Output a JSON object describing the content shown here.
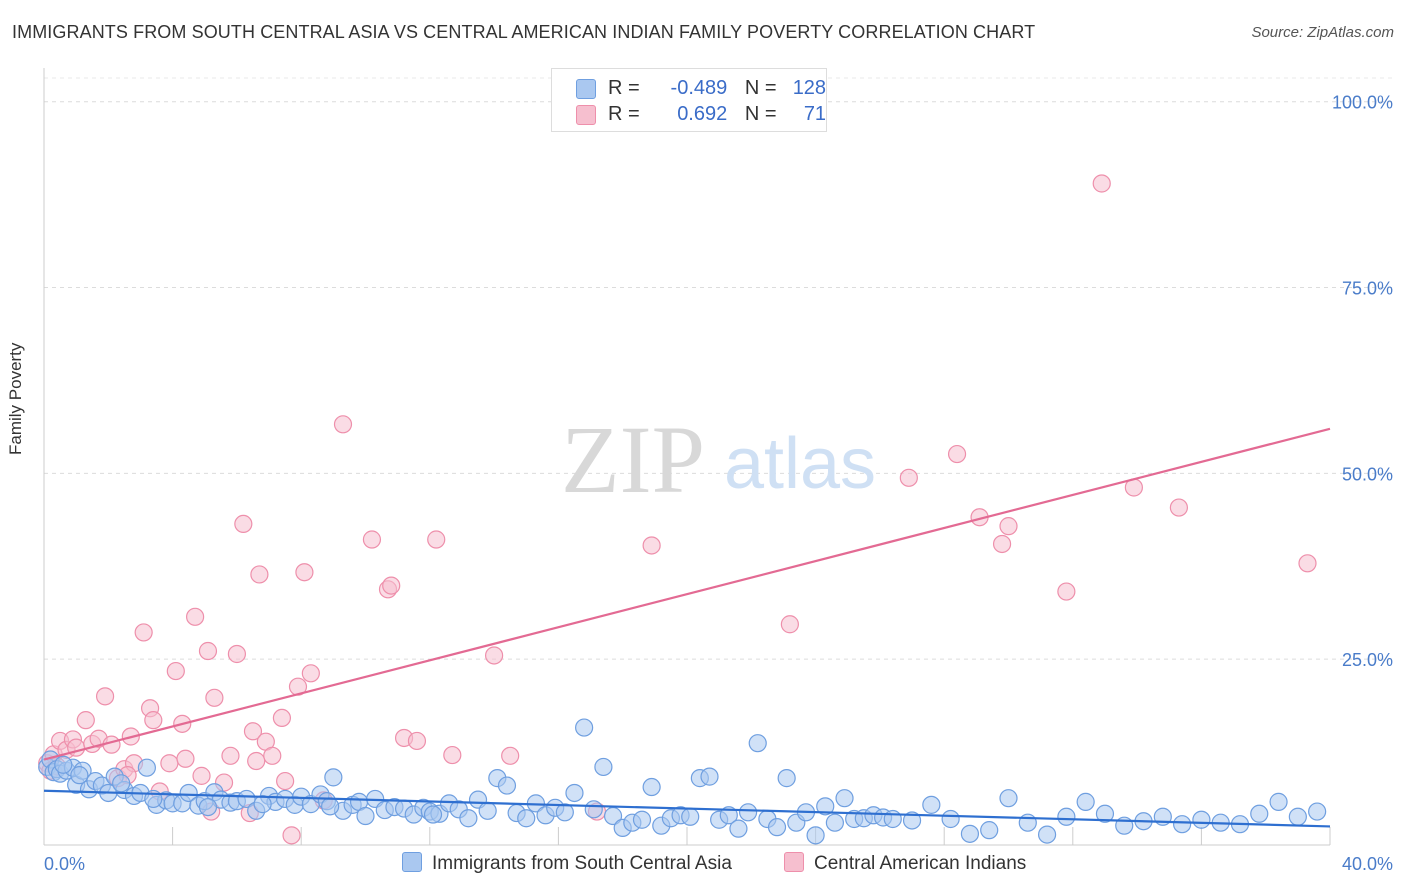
{
  "title": "IMMIGRANTS FROM SOUTH CENTRAL ASIA VS CENTRAL AMERICAN INDIAN FAMILY POVERTY CORRELATION CHART",
  "source": "Source: ZipAtlas.com",
  "watermark": {
    "zip": "ZIP",
    "atlas": "atlas"
  },
  "legend": {
    "rows": [
      {
        "r_label": "R =",
        "r_value": "-0.489",
        "n_label": "N =",
        "n_value": "128"
      },
      {
        "r_label": "R =",
        "r_value": "0.692",
        "n_label": "N =",
        "n_value": "71"
      }
    ]
  },
  "colors": {
    "blue_fill": "#aac8f0",
    "blue_stroke": "#6f9fe0",
    "blue_line": "#2e6fd0",
    "pink_fill": "#f6bfcf",
    "pink_stroke": "#ee8fab",
    "pink_line": "#e36a93",
    "axis_label": "#4a7cc9"
  },
  "chart_data": {
    "type": "scatter",
    "title": "IMMIGRANTS FROM SOUTH CENTRAL ASIA VS CENTRAL AMERICAN INDIAN FAMILY POVERTY CORRELATION CHART",
    "xlabel": "",
    "ylabel": "Family Poverty",
    "xlim": [
      0,
      40
    ],
    "ylim": [
      0,
      104
    ],
    "x_tick_labels": [
      "0.0%",
      "40.0%"
    ],
    "y_tick_labels": [
      "25.0%",
      "50.0%",
      "75.0%",
      "100.0%"
    ],
    "y_ticks": [
      25,
      50,
      75,
      100
    ],
    "grid": true,
    "series": [
      {
        "name": "Immigrants from South Central Asia",
        "color": "blue",
        "r": -0.489,
        "n": 128,
        "trend": {
          "x": [
            0,
            40
          ],
          "y": [
            7.3,
            2.5
          ]
        },
        "points": [
          [
            0.1,
            10.5
          ],
          [
            0.2,
            11.5
          ],
          [
            0.3,
            9.8
          ],
          [
            0.4,
            10.2
          ],
          [
            0.5,
            9.6
          ],
          [
            0.7,
            10.0
          ],
          [
            0.9,
            10.4
          ],
          [
            1.0,
            8.1
          ],
          [
            1.2,
            10.0
          ],
          [
            1.4,
            7.5
          ],
          [
            1.6,
            8.6
          ],
          [
            1.8,
            8.0
          ],
          [
            2.0,
            7.0
          ],
          [
            2.2,
            9.2
          ],
          [
            2.5,
            7.4
          ],
          [
            2.8,
            6.6
          ],
          [
            3.0,
            7.0
          ],
          [
            3.2,
            10.4
          ],
          [
            3.5,
            5.4
          ],
          [
            3.8,
            6.0
          ],
          [
            4.0,
            5.6
          ],
          [
            4.3,
            5.6
          ],
          [
            4.5,
            7.0
          ],
          [
            4.8,
            5.3
          ],
          [
            5.0,
            5.9
          ],
          [
            5.3,
            7.1
          ],
          [
            5.5,
            6.1
          ],
          [
            5.8,
            5.7
          ],
          [
            6.0,
            5.9
          ],
          [
            6.3,
            6.2
          ],
          [
            6.6,
            4.6
          ],
          [
            7.0,
            6.6
          ],
          [
            7.2,
            5.8
          ],
          [
            7.5,
            6.2
          ],
          [
            7.8,
            5.4
          ],
          [
            8.0,
            6.5
          ],
          [
            8.3,
            5.5
          ],
          [
            8.6,
            6.8
          ],
          [
            8.8,
            5.9
          ],
          [
            9.0,
            9.1
          ],
          [
            9.3,
            4.6
          ],
          [
            9.6,
            5.4
          ],
          [
            9.8,
            5.8
          ],
          [
            10.0,
            3.9
          ],
          [
            10.3,
            6.2
          ],
          [
            10.6,
            4.7
          ],
          [
            10.9,
            5.1
          ],
          [
            11.2,
            4.9
          ],
          [
            11.5,
            4.1
          ],
          [
            11.8,
            5.0
          ],
          [
            12.0,
            4.5
          ],
          [
            12.3,
            4.2
          ],
          [
            12.6,
            5.6
          ],
          [
            12.9,
            4.8
          ],
          [
            13.2,
            3.6
          ],
          [
            13.5,
            6.1
          ],
          [
            13.8,
            4.6
          ],
          [
            14.1,
            9.0
          ],
          [
            14.4,
            8.0
          ],
          [
            14.7,
            4.3
          ],
          [
            15.0,
            3.6
          ],
          [
            15.3,
            5.6
          ],
          [
            15.6,
            4.0
          ],
          [
            15.9,
            5.0
          ],
          [
            16.2,
            4.4
          ],
          [
            16.5,
            7.0
          ],
          [
            16.8,
            15.8
          ],
          [
            17.1,
            4.8
          ],
          [
            17.4,
            10.5
          ],
          [
            17.7,
            3.9
          ],
          [
            18.0,
            2.3
          ],
          [
            18.3,
            3.0
          ],
          [
            18.6,
            3.4
          ],
          [
            18.9,
            7.8
          ],
          [
            19.2,
            2.6
          ],
          [
            19.5,
            3.6
          ],
          [
            19.8,
            4.0
          ],
          [
            20.1,
            3.8
          ],
          [
            20.4,
            9.0
          ],
          [
            20.7,
            9.2
          ],
          [
            21.0,
            3.4
          ],
          [
            21.3,
            4.0
          ],
          [
            21.6,
            2.2
          ],
          [
            21.9,
            4.4
          ],
          [
            22.2,
            13.7
          ],
          [
            22.5,
            3.5
          ],
          [
            22.8,
            2.4
          ],
          [
            23.1,
            9.0
          ],
          [
            23.4,
            3.0
          ],
          [
            23.7,
            4.4
          ],
          [
            24.0,
            1.3
          ],
          [
            24.3,
            5.2
          ],
          [
            24.6,
            3.0
          ],
          [
            24.9,
            6.3
          ],
          [
            25.2,
            3.5
          ],
          [
            25.5,
            3.6
          ],
          [
            25.8,
            4.0
          ],
          [
            26.1,
            3.7
          ],
          [
            26.4,
            3.5
          ],
          [
            27.0,
            3.3
          ],
          [
            27.6,
            5.4
          ],
          [
            28.2,
            3.5
          ],
          [
            28.8,
            1.5
          ],
          [
            29.4,
            2.0
          ],
          [
            30.0,
            6.3
          ],
          [
            30.6,
            3.0
          ],
          [
            31.2,
            1.4
          ],
          [
            31.8,
            3.8
          ],
          [
            32.4,
            5.8
          ],
          [
            33.0,
            4.2
          ],
          [
            33.6,
            2.6
          ],
          [
            34.2,
            3.2
          ],
          [
            34.8,
            3.8
          ],
          [
            35.4,
            2.8
          ],
          [
            36.0,
            3.4
          ],
          [
            36.6,
            3.0
          ],
          [
            37.2,
            2.8
          ],
          [
            37.8,
            4.2
          ],
          [
            38.4,
            5.8
          ],
          [
            39.0,
            3.8
          ],
          [
            39.6,
            4.5
          ],
          [
            0.6,
            10.8
          ],
          [
            1.1,
            9.4
          ],
          [
            2.4,
            8.3
          ],
          [
            3.4,
            6.2
          ],
          [
            5.1,
            5.1
          ],
          [
            6.8,
            5.5
          ],
          [
            8.9,
            5.2
          ],
          [
            12.1,
            4.1
          ]
        ]
      },
      {
        "name": "Central American Indians",
        "color": "pink",
        "r": 0.692,
        "n": 71,
        "trend": {
          "x": [
            0,
            40
          ],
          "y": [
            11.5,
            56.0
          ]
        },
        "points": [
          [
            0.1,
            11.0
          ],
          [
            0.2,
            10.0
          ],
          [
            0.3,
            12.2
          ],
          [
            0.4,
            10.6
          ],
          [
            0.5,
            14.0
          ],
          [
            0.7,
            12.8
          ],
          [
            0.9,
            14.2
          ],
          [
            1.0,
            13.1
          ],
          [
            1.3,
            16.8
          ],
          [
            1.5,
            13.6
          ],
          [
            1.7,
            14.3
          ],
          [
            1.9,
            20.0
          ],
          [
            2.1,
            13.5
          ],
          [
            2.3,
            9.0
          ],
          [
            2.5,
            10.2
          ],
          [
            2.7,
            14.6
          ],
          [
            2.8,
            11.0
          ],
          [
            3.1,
            28.6
          ],
          [
            3.3,
            18.4
          ],
          [
            3.4,
            16.8
          ],
          [
            3.6,
            7.2
          ],
          [
            3.9,
            11.0
          ],
          [
            4.1,
            23.4
          ],
          [
            4.3,
            16.3
          ],
          [
            4.4,
            11.6
          ],
          [
            4.7,
            30.7
          ],
          [
            4.9,
            9.3
          ],
          [
            5.1,
            26.1
          ],
          [
            5.2,
            4.5
          ],
          [
            5.3,
            19.8
          ],
          [
            5.6,
            8.4
          ],
          [
            5.8,
            12.0
          ],
          [
            6.0,
            25.7
          ],
          [
            6.2,
            43.2
          ],
          [
            6.4,
            4.3
          ],
          [
            6.5,
            15.3
          ],
          [
            6.7,
            36.4
          ],
          [
            6.9,
            13.9
          ],
          [
            7.1,
            12.0
          ],
          [
            7.4,
            17.1
          ],
          [
            7.5,
            8.6
          ],
          [
            7.7,
            1.3
          ],
          [
            7.9,
            21.3
          ],
          [
            8.1,
            36.7
          ],
          [
            8.3,
            23.1
          ],
          [
            8.7,
            6.0
          ],
          [
            9.3,
            56.6
          ],
          [
            10.2,
            41.1
          ],
          [
            10.7,
            34.4
          ],
          [
            10.8,
            34.9
          ],
          [
            11.2,
            14.4
          ],
          [
            11.6,
            14.0
          ],
          [
            12.2,
            41.1
          ],
          [
            12.7,
            12.1
          ],
          [
            14.0,
            25.5
          ],
          [
            14.5,
            12.0
          ],
          [
            17.2,
            4.5
          ],
          [
            18.9,
            40.3
          ],
          [
            23.2,
            29.7
          ],
          [
            26.9,
            49.4
          ],
          [
            28.4,
            52.6
          ],
          [
            29.1,
            44.1
          ],
          [
            29.8,
            40.5
          ],
          [
            30.0,
            42.9
          ],
          [
            31.8,
            34.1
          ],
          [
            32.9,
            89.0
          ],
          [
            33.9,
            48.1
          ],
          [
            35.3,
            45.4
          ],
          [
            39.3,
            37.9
          ],
          [
            2.6,
            9.4
          ],
          [
            6.6,
            11.3
          ]
        ]
      }
    ]
  },
  "bottom_legend": [
    "Immigrants from South Central Asia",
    "Central American Indians"
  ]
}
